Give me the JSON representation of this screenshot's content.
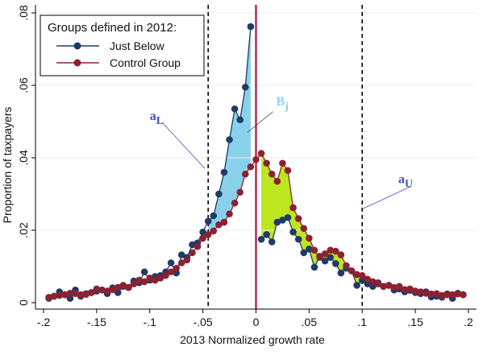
{
  "chart_data": {
    "type": "line",
    "xlabel": "2013 Normalized growth rate",
    "ylabel": "Proportion of taxpayers",
    "xlim": [
      -0.2,
      0.2
    ],
    "ylim": [
      0,
      0.08
    ],
    "x_ticks": [
      -0.2,
      -0.15,
      -0.1,
      -0.05,
      0,
      0.05,
      0.1,
      0.15,
      0.2
    ],
    "x_tick_labels": [
      "-.2",
      "-.15",
      "-.1",
      "-.05",
      "0",
      ".05",
      ".1",
      ".15",
      ".2"
    ],
    "y_ticks": [
      0,
      0.02,
      0.04,
      0.06,
      0.08
    ],
    "y_tick_labels": [
      "0",
      ".02",
      ".04",
      ".06",
      ".08"
    ],
    "legend": {
      "title": "Groups defined in 2012:",
      "position": "top-left",
      "entries": [
        "Just Below",
        "Control Group"
      ]
    },
    "reference_lines": [
      {
        "x": -0.045,
        "style": "dashed",
        "color": "#000000"
      },
      {
        "x": 0,
        "style": "solid",
        "color": "#b0103a"
      },
      {
        "x": 0.1,
        "style": "dashed",
        "color": "#000000"
      }
    ],
    "annotations": [
      {
        "text": "a",
        "sub": "L",
        "x": -0.1,
        "y": 0.0505,
        "arrow_to": [
          -0.048,
          0.037
        ],
        "color": "#3a4fc0"
      },
      {
        "text": "B",
        "sub": "j",
        "x": 0.019,
        "y": 0.0545,
        "arrow_to": [
          -0.008,
          0.047
        ],
        "color": "#8fd3ef"
      },
      {
        "text": "a",
        "sub": "U",
        "x": 0.134,
        "y": 0.033,
        "arrow_to": [
          0.101,
          0.026
        ],
        "color": "#3a4fc0"
      }
    ],
    "fill_colors": {
      "left": "#89d1ea",
      "right": "#bde61e"
    },
    "series": [
      {
        "name": "Just Below",
        "color": "#1f3b66",
        "x": [
          -0.195,
          -0.19,
          -0.185,
          -0.18,
          -0.175,
          -0.17,
          -0.165,
          -0.16,
          -0.155,
          -0.15,
          -0.145,
          -0.14,
          -0.135,
          -0.13,
          -0.125,
          -0.12,
          -0.115,
          -0.11,
          -0.105,
          -0.1,
          -0.095,
          -0.09,
          -0.085,
          -0.08,
          -0.075,
          -0.07,
          -0.065,
          -0.06,
          -0.055,
          -0.05,
          -0.045,
          -0.04,
          -0.035,
          -0.03,
          -0.025,
          -0.02,
          -0.015,
          -0.01,
          -0.005,
          0,
          0.005,
          0.01,
          0.015,
          0.02,
          0.025,
          0.03,
          0.035,
          0.04,
          0.045,
          0.05,
          0.055,
          0.06,
          0.065,
          0.07,
          0.075,
          0.08,
          0.085,
          0.09,
          0.095,
          0.1,
          0.105,
          0.11,
          0.115,
          0.12,
          0.125,
          0.13,
          0.135,
          0.14,
          0.145,
          0.15,
          0.155,
          0.16,
          0.165,
          0.17,
          0.175,
          0.18,
          0.185,
          0.19,
          0.195
        ],
        "values": [
          0.0012,
          0.0018,
          0.003,
          0.0022,
          0.0012,
          0.0035,
          0.0018,
          0.0025,
          0.0028,
          0.0032,
          0.0035,
          0.0025,
          0.0041,
          0.0028,
          0.0045,
          0.0042,
          0.006,
          0.0055,
          0.0085,
          0.0062,
          0.0072,
          0.0075,
          0.0085,
          0.011,
          0.0082,
          0.0132,
          0.0125,
          0.016,
          0.0165,
          0.0195,
          0.0225,
          0.024,
          0.03,
          0.036,
          0.045,
          0.0535,
          0.0505,
          0.0595,
          0.0762,
          null,
          0.0175,
          0.0188,
          0.0168,
          0.0222,
          0.0228,
          0.0235,
          0.0195,
          0.0175,
          0.0138,
          0.0148,
          0.0098,
          0.0128,
          0.0115,
          0.0125,
          0.0108,
          0.0082,
          0.0095,
          0.0088,
          0.0048,
          0.0062,
          0.0052,
          0.0045,
          0.0055,
          0.0045,
          0.0048,
          0.0035,
          0.0038,
          0.003,
          0.0034,
          0.0028,
          0.0025,
          0.003,
          0.0016,
          0.0018,
          0.0015,
          0.0024,
          0.0012,
          0.0026,
          0.0022
        ]
      },
      {
        "name": "Control Group",
        "color": "#8b2232",
        "x": [
          -0.195,
          -0.19,
          -0.185,
          -0.18,
          -0.175,
          -0.17,
          -0.165,
          -0.16,
          -0.155,
          -0.15,
          -0.145,
          -0.14,
          -0.135,
          -0.13,
          -0.125,
          -0.12,
          -0.115,
          -0.11,
          -0.105,
          -0.1,
          -0.095,
          -0.09,
          -0.085,
          -0.08,
          -0.075,
          -0.07,
          -0.065,
          -0.06,
          -0.055,
          -0.05,
          -0.045,
          -0.04,
          -0.035,
          -0.03,
          -0.025,
          -0.02,
          -0.015,
          -0.01,
          -0.005,
          0,
          0.005,
          0.01,
          0.015,
          0.02,
          0.025,
          0.03,
          0.035,
          0.04,
          0.045,
          0.05,
          0.055,
          0.06,
          0.065,
          0.07,
          0.075,
          0.08,
          0.085,
          0.09,
          0.095,
          0.1,
          0.105,
          0.11,
          0.115,
          0.12,
          0.125,
          0.13,
          0.135,
          0.14,
          0.145,
          0.15,
          0.155,
          0.16,
          0.165,
          0.17,
          0.175,
          0.18,
          0.185,
          0.19,
          0.195
        ],
        "values": [
          0.0015,
          0.0018,
          0.002,
          0.0022,
          0.0026,
          0.0025,
          0.0022,
          0.0023,
          0.0028,
          0.0038,
          0.0035,
          0.0032,
          0.0036,
          0.0042,
          0.0048,
          0.0042,
          0.0052,
          0.0062,
          0.0058,
          0.0068,
          0.0062,
          0.0068,
          0.0075,
          0.0085,
          0.0095,
          0.011,
          0.0118,
          0.0138,
          0.0155,
          0.0178,
          0.0188,
          0.0198,
          0.0215,
          0.0222,
          0.0245,
          0.0275,
          0.0305,
          0.0355,
          0.0375,
          0.0395,
          0.0412,
          0.0385,
          0.0355,
          0.0335,
          0.0385,
          0.0365,
          0.0262,
          0.0232,
          0.0205,
          0.0178,
          0.0145,
          0.0125,
          0.0135,
          0.0145,
          0.0142,
          0.0132,
          0.0102,
          0.0088,
          0.0078,
          0.0075,
          0.0065,
          0.0058,
          0.0052,
          0.0045,
          0.0048,
          0.0042,
          0.0045,
          0.0036,
          0.0038,
          0.0032,
          0.003,
          0.0026,
          0.0024,
          0.0025,
          0.002,
          0.0022,
          0.0022,
          0.0024,
          0.0022
        ]
      }
    ]
  }
}
